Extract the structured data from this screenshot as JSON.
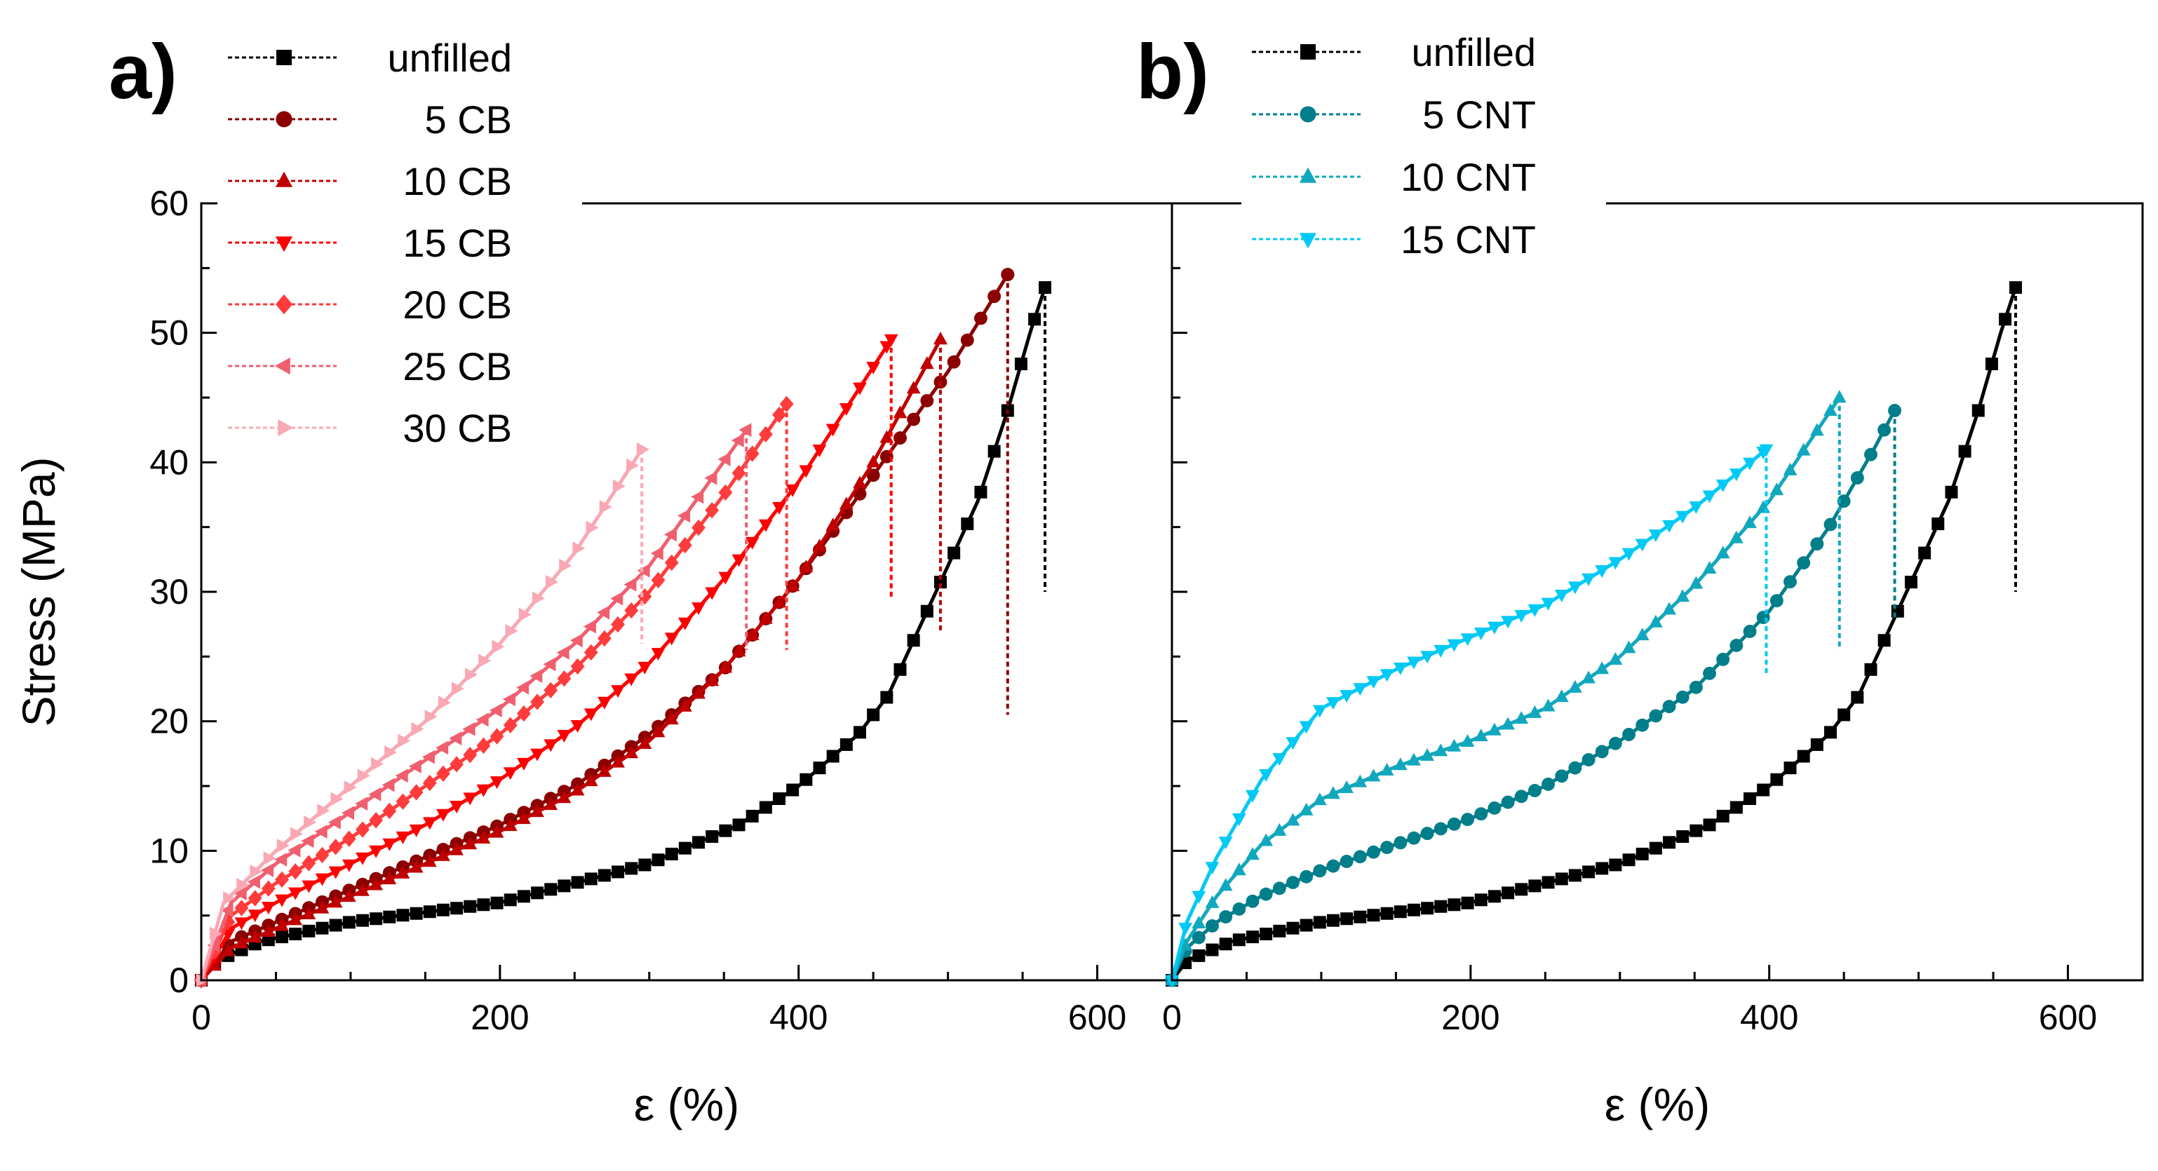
{
  "chart_data": [
    {
      "type": "line",
      "panel_label": "a)",
      "xlabel": "ε (%)",
      "ylabel": "Stress (MPa)",
      "xlim": [
        0,
        650
      ],
      "ylim": [
        0,
        60
      ],
      "xticks": [
        0,
        200,
        400,
        600
      ],
      "xtick_labels": [
        "0",
        "200",
        "400",
        "600"
      ],
      "yticks": [
        0,
        10,
        20,
        30,
        40,
        50,
        60
      ],
      "ytick_labels": [
        "0",
        "10",
        "20",
        "30",
        "40",
        "50",
        "60"
      ],
      "legend_position": "top-left, outside plot area",
      "series": [
        {
          "name": "unfilled",
          "color": "#000000",
          "marker": "square",
          "break_to": 30,
          "x": [
            0,
            10,
            40,
            100,
            200,
            300,
            360,
            400,
            440,
            460,
            480,
            500,
            520,
            540,
            555,
            565
          ],
          "y": [
            0,
            1.5,
            3,
            4.5,
            6,
            9,
            12,
            15,
            19,
            22,
            27,
            32,
            37,
            44,
            50,
            53.5
          ]
        },
        {
          "name": "5 CB",
          "color": "#8B0000",
          "marker": "circle",
          "break_to": 20.5,
          "x": [
            0,
            20,
            50,
            100,
            150,
            200,
            250,
            300,
            350,
            400,
            450,
            500,
            540
          ],
          "y": [
            0,
            3,
            4.5,
            7,
            9.5,
            12,
            15,
            19,
            24,
            31,
            39,
            47,
            54.5
          ]
        },
        {
          "name": "10 CB",
          "color": "#C00000",
          "marker": "triangle-up",
          "break_to": 27,
          "x": [
            0,
            20,
            50,
            100,
            150,
            200,
            250,
            300,
            350,
            400,
            450,
            495
          ],
          "y": [
            0,
            2.5,
            4,
            6.5,
            9,
            11.5,
            14.5,
            18.5,
            24,
            31,
            40,
            49.5
          ]
        },
        {
          "name": "15 CB",
          "color": "#FF0000",
          "marker": "triangle-down",
          "break_to": 29.5,
          "x": [
            0,
            20,
            50,
            100,
            150,
            200,
            250,
            300,
            350,
            400,
            462
          ],
          "y": [
            0,
            4,
            6,
            9,
            12,
            15.5,
            19.5,
            24.5,
            31,
            38.5,
            49.5
          ]
        },
        {
          "name": "20 CB",
          "color": "#FF3B3B",
          "marker": "diamond",
          "break_to": 25.5,
          "x": [
            0,
            20,
            50,
            100,
            150,
            200,
            250,
            300,
            350,
            392
          ],
          "y": [
            0,
            5,
            7.5,
            11,
            15,
            19,
            24,
            30,
            37.5,
            44.5
          ]
        },
        {
          "name": "25 CB",
          "color": "#F05F6E",
          "marker": "triangle-left",
          "break_to": 25.5,
          "x": [
            0,
            20,
            50,
            100,
            150,
            200,
            250,
            300,
            365
          ],
          "y": [
            0,
            6,
            9,
            13,
            17,
            21,
            26,
            32,
            42.5
          ]
        },
        {
          "name": "30 CB",
          "color": "#F9A8B4",
          "marker": "triangle-right",
          "break_to": 26,
          "x": [
            0,
            15,
            50,
            100,
            150,
            200,
            250,
            295
          ],
          "y": [
            0,
            6,
            10,
            15,
            20,
            26,
            33,
            41
          ]
        }
      ]
    },
    {
      "type": "line",
      "panel_label": "b)",
      "xlabel": "ε (%)",
      "ylabel": "",
      "xlim": [
        0,
        650
      ],
      "ylim": [
        0,
        60
      ],
      "xticks": [
        0,
        200,
        400,
        600
      ],
      "xtick_labels": [
        "0",
        "200",
        "400",
        "600"
      ],
      "yticks": [
        0,
        10,
        20,
        30,
        40,
        50,
        60
      ],
      "ytick_labels": [],
      "legend_position": "top-left, outside plot area",
      "series": [
        {
          "name": "unfilled",
          "color": "#000000",
          "marker": "square",
          "break_to": 30,
          "x": [
            0,
            10,
            40,
            100,
            200,
            300,
            360,
            400,
            440,
            460,
            480,
            500,
            520,
            540,
            555,
            565
          ],
          "y": [
            0,
            1.5,
            3,
            4.5,
            6,
            9,
            12,
            15,
            19,
            22,
            27,
            32,
            37,
            44,
            50,
            53.5
          ]
        },
        {
          "name": "5 CNT",
          "color": "#007E8A",
          "marker": "circle",
          "break_to": 28,
          "x": [
            0,
            10,
            30,
            60,
            100,
            150,
            200,
            250,
            300,
            350,
            400,
            440,
            470,
            484
          ],
          "y": [
            0,
            2.5,
            4.5,
            6.5,
            8.5,
            10.5,
            12.5,
            15,
            18.5,
            22.5,
            28.5,
            35,
            41,
            44
          ]
        },
        {
          "name": "10 CNT",
          "color": "#11A8BD",
          "marker": "triangle-up",
          "break_to": 25.5,
          "x": [
            0,
            10,
            30,
            60,
            100,
            150,
            200,
            250,
            300,
            350,
            400,
            447
          ],
          "y": [
            0,
            3,
            6.5,
            10.5,
            14,
            16.5,
            18.5,
            21,
            25,
            30.5,
            37,
            45
          ]
        },
        {
          "name": "15 CNT",
          "color": "#00C9F5",
          "marker": "triangle-down",
          "break_to": 23.5,
          "x": [
            0,
            10,
            30,
            60,
            100,
            150,
            200,
            250,
            300,
            350,
            398
          ],
          "y": [
            0,
            4.5,
            9.5,
            15.5,
            21,
            24,
            26.5,
            29,
            32.5,
            36.5,
            41
          ]
        }
      ]
    }
  ]
}
